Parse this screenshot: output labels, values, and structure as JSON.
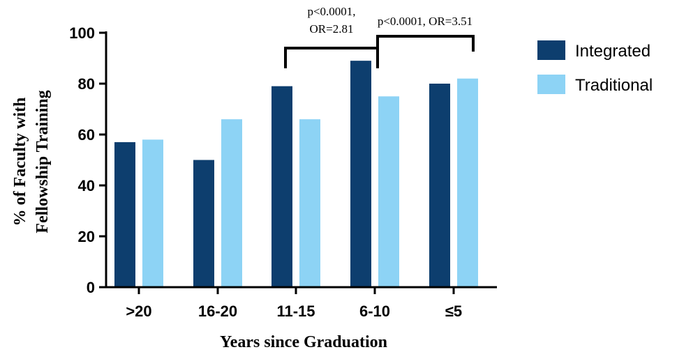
{
  "chart_data": {
    "type": "bar",
    "categories": [
      ">20",
      "16-20",
      "11-15",
      "6-10",
      "≤5"
    ],
    "series": [
      {
        "name": "Integrated",
        "values": [
          57,
          50,
          79,
          89,
          80
        ],
        "color": "#0d3e6e"
      },
      {
        "name": "Traditional",
        "values": [
          58,
          66,
          66,
          75,
          82
        ],
        "color": "#8dd3f5"
      }
    ],
    "xlabel": "Years since Graduation",
    "ylabel": [
      "% of Faculty with",
      "Fellowship Training"
    ],
    "ylim": [
      0,
      100
    ],
    "yticks": [
      0,
      20,
      40,
      60,
      80,
      100
    ],
    "grid": false,
    "legend": "right",
    "annotations": [
      {
        "from": "11-15",
        "to": "6-10",
        "lines": [
          "p<0.0001,",
          "OR=2.81"
        ]
      },
      {
        "from": "6-10",
        "to": "≤5",
        "lines": [
          "p<0.0001, OR=3.51"
        ]
      }
    ]
  }
}
